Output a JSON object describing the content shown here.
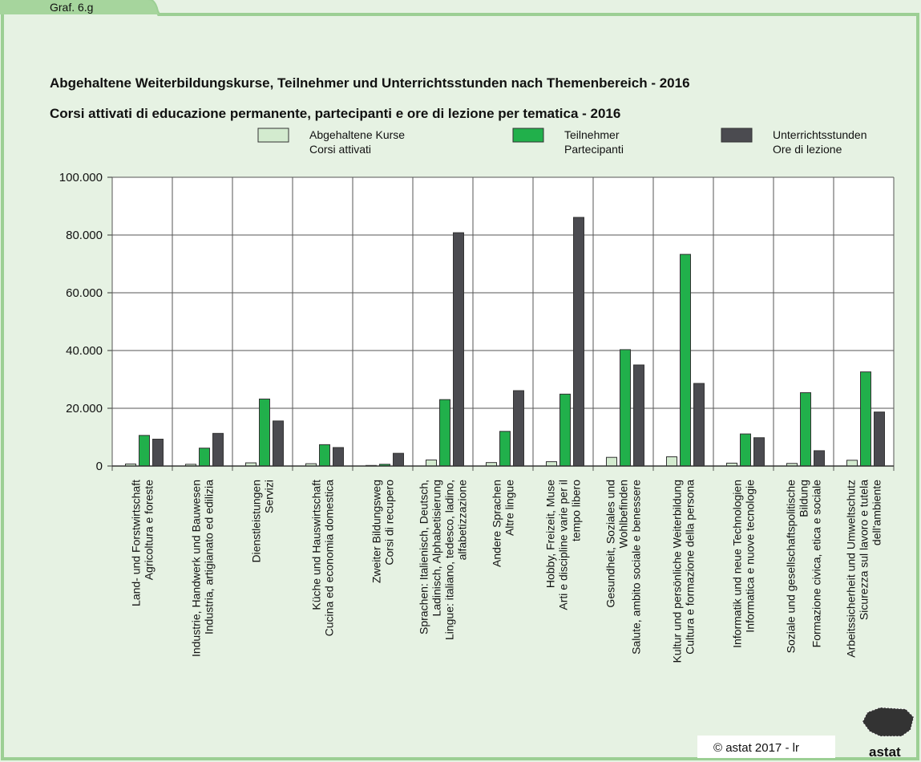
{
  "tab": "Graf. 6.g",
  "footer": "© astat 2017 - lr",
  "logo": "astat",
  "chart_data": {
    "type": "bar",
    "title": "Abgehaltene Weiterbildungskurse, Teilnehmer und Unterrichtsstunden nach Themenbereich - 2016",
    "subtitle": "Corsi attivati di educazione permanente, partecipanti e ore di lezione per tematica - 2016",
    "categories": [
      [
        "Land- und Forstwirtschaft",
        "Agricoltura e foreste"
      ],
      [
        "Industrie, Handwerk und Bauwesen",
        "Industria, artigianato ed edilizia"
      ],
      [
        "Dienstleistungen",
        "Servizi"
      ],
      [
        "Küche und Hauswirtschaft",
        "Cucina ed economia domestica"
      ],
      [
        "Zweiter Bildungsweg",
        "Corsi di recupero"
      ],
      [
        "Sprachen: Italienisch, Deutsch,",
        "Ladinisch, Alphabetisierung",
        "Lingue: italiano, tedesco, ladino,",
        "alfabetizzazione"
      ],
      [
        "Andere Sprachen",
        "Altre lingue"
      ],
      [
        "Hobby, Freizeit, Muse",
        "Arti e discipline varie per il",
        "tempo libero"
      ],
      [
        "Gesundheit, Soziales und",
        "Wohlbefinden",
        "Salute, ambito sociale e benessere"
      ],
      [
        "Kultur und persönliche Weiterbildung",
        "Cultura e formazione della persona"
      ],
      [
        "Informatik und neue Technologien",
        "Informatica e nuove tecnologie"
      ],
      [
        "Soziale und gesellschaftspolitische",
        "Bildung",
        "Formazione civica, etica e sociale"
      ],
      [
        "Arbeitssicherheit und Umweltschutz",
        "Sicurezza sul lavoro e tutela",
        "dell'ambiente"
      ]
    ],
    "series": [
      {
        "name": [
          "Abgehaltene Kurse",
          "Corsi attivati"
        ],
        "color": "#d3ebcf",
        "values": [
          700,
          600,
          1100,
          800,
          200,
          2100,
          1200,
          1500,
          3000,
          3200,
          1000,
          900,
          2000
        ]
      },
      {
        "name": [
          "Teilnehmer",
          "Partecipanti"
        ],
        "color": "#21b04b",
        "values": [
          10600,
          6200,
          23200,
          7400,
          600,
          23000,
          12000,
          24900,
          40300,
          73300,
          11100,
          25400,
          32600
        ]
      },
      {
        "name": [
          "Unterrichtsstunden",
          "Ore di lezione"
        ],
        "color": "#4b4b50",
        "values": [
          9300,
          11300,
          15600,
          6400,
          4400,
          80800,
          26100,
          86100,
          35000,
          28600,
          9800,
          5300,
          18700
        ]
      }
    ],
    "ylim": [
      0,
      100000
    ],
    "yticks": [
      0,
      {
        "value": 20000,
        "label": "20.000"
      },
      {
        "value": 40000,
        "label": "40.000"
      },
      {
        "value": 60000,
        "label": "60.000"
      },
      {
        "value": 80000,
        "label": "80.000"
      },
      {
        "value": 100000,
        "label": "100.000"
      }
    ],
    "grid": true
  }
}
